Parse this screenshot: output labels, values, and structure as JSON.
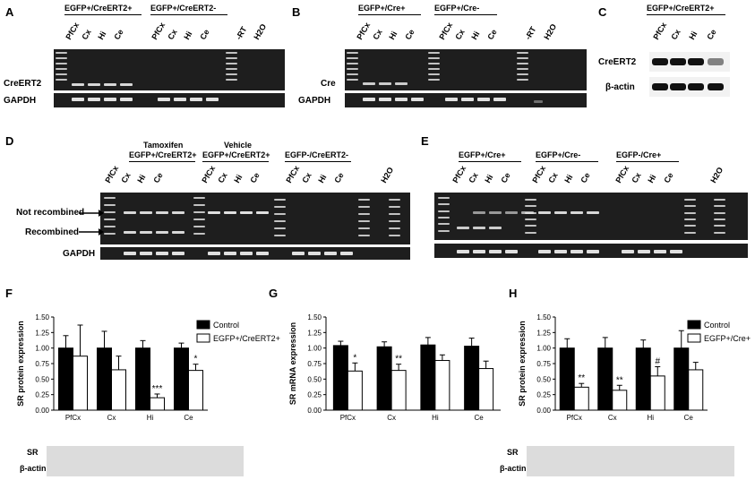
{
  "panels": {
    "A": {
      "label": "A",
      "groups": [
        "EGFP+/CreERT2+",
        "EGFP+/CreERT2-"
      ],
      "lanes": [
        "PfCx",
        "Cx",
        "Hi",
        "Ce",
        "PfCx",
        "Cx",
        "Hi",
        "Ce",
        "-RT",
        "H2O"
      ],
      "row1": "CreERT2",
      "row2": "GAPDH"
    },
    "B": {
      "label": "B",
      "groups": [
        "EGFP+/Cre+",
        "EGFP+/Cre-"
      ],
      "lanes": [
        "PfCx",
        "Cx",
        "Hi",
        "Ce",
        "PfCx",
        "Cx",
        "Hi",
        "Ce",
        "-RT",
        "H2O"
      ],
      "row1": "Cre",
      "row2": "GAPDH"
    },
    "C": {
      "label": "C",
      "groups": [
        "EGFP+/CreERT2+"
      ],
      "lanes": [
        "PfCx",
        "Cx",
        "Hi",
        "Ce"
      ],
      "row1": "CreERT2",
      "row2": "β-actin"
    },
    "D": {
      "label": "D",
      "groups": [
        "Tamoxifen",
        "EGFP+/CreERT2+",
        "Vehicle",
        "EGFP+/CreERT2+",
        "EGFP-/CreERT2-"
      ],
      "lanes": [
        "PfCx",
        "Cx",
        "Hi",
        "Ce",
        "PfCx",
        "Cx",
        "Hi",
        "Ce",
        "PfCx",
        "Cx",
        "Hi",
        "Ce",
        "H2O"
      ],
      "row1": "Not recombined",
      "row2": "Recombined",
      "row3": "GAPDH"
    },
    "E": {
      "label": "E",
      "groups": [
        "EGFP+/Cre+",
        "EGFP+/Cre-",
        "EGFP-/Cre+"
      ],
      "lanes": [
        "PfCx",
        "Cx",
        "Hi",
        "Ce",
        "PfCx",
        "Cx",
        "Hi",
        "Ce",
        "PfCx",
        "Cx",
        "Hi",
        "Ce",
        "H2O"
      ]
    },
    "F": {
      "label": "F",
      "wb1": "SR",
      "wb2": "β-actin"
    },
    "G": {
      "label": "G"
    },
    "H": {
      "label": "H",
      "wb1": "SR",
      "wb2": "β-actin"
    }
  },
  "chart_data": [
    {
      "type": "bar",
      "panel": "F",
      "ylabel": "SR protein expression",
      "categories": [
        "PfCx",
        "Cx",
        "Hi",
        "Ce"
      ],
      "ylim": [
        0,
        1.5
      ],
      "yticks": [
        "0.00",
        "0.25",
        "0.50",
        "0.75",
        "1.00",
        "1.25",
        "1.50"
      ],
      "series": [
        {
          "name": "Control",
          "color": "#000000",
          "values": [
            1.0,
            1.0,
            1.0,
            1.0
          ],
          "err": [
            0.2,
            0.27,
            0.12,
            0.08
          ]
        },
        {
          "name": "EGFP+/CreERT2+",
          "color": "#ffffff",
          "values": [
            0.87,
            0.65,
            0.2,
            0.64
          ],
          "err": [
            0.5,
            0.22,
            0.06,
            0.1
          ]
        }
      ],
      "annotations": [
        "",
        "",
        "***",
        "*"
      ]
    },
    {
      "type": "bar",
      "panel": "G",
      "ylabel": "SR mRNA expression",
      "categories": [
        "PfCx",
        "Cx",
        "Hi",
        "Ce"
      ],
      "ylim": [
        0,
        1.5
      ],
      "yticks": [
        "0.00",
        "0.25",
        "0.50",
        "0.75",
        "1.00",
        "1.25",
        "1.50"
      ],
      "series": [
        {
          "name": "Control",
          "color": "#000000",
          "values": [
            1.04,
            1.02,
            1.05,
            1.03
          ],
          "err": [
            0.07,
            0.08,
            0.12,
            0.13
          ]
        },
        {
          "name": "",
          "color": "#ffffff",
          "values": [
            0.63,
            0.64,
            0.8,
            0.67
          ],
          "err": [
            0.13,
            0.1,
            0.09,
            0.12
          ]
        }
      ],
      "annotations": [
        "*",
        "**",
        "",
        ""
      ]
    },
    {
      "type": "bar",
      "panel": "H",
      "ylabel": "SR protein expression",
      "categories": [
        "PfCx",
        "Cx",
        "Hi",
        "Ce"
      ],
      "ylim": [
        0,
        1.5
      ],
      "yticks": [
        "0.00",
        "0.25",
        "0.50",
        "0.75",
        "1.00",
        "1.25",
        "1.50"
      ],
      "series": [
        {
          "name": "Control",
          "color": "#000000",
          "values": [
            1.0,
            1.0,
            1.0,
            1.0
          ],
          "err": [
            0.15,
            0.17,
            0.13,
            0.28
          ]
        },
        {
          "name": "EGFP+/Cre+",
          "color": "#ffffff",
          "values": [
            0.37,
            0.32,
            0.55,
            0.65
          ],
          "err": [
            0.06,
            0.08,
            0.15,
            0.12
          ]
        }
      ],
      "annotations": [
        "**",
        "**",
        "#",
        ""
      ]
    }
  ]
}
